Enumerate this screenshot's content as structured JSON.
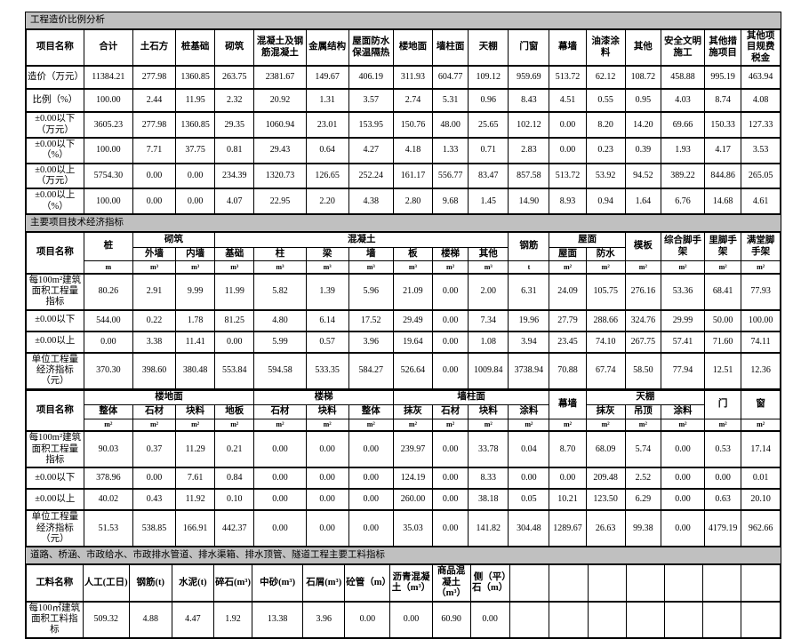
{
  "page": {
    "background": "#ffffff",
    "band_color": "#c0c0c0"
  },
  "section1": {
    "title": "工程造价比例分析",
    "header": [
      "项目名称",
      "合计",
      "土石方",
      "桩基础",
      "砌筑",
      "混凝土及钢筋混凝土",
      "金属结构",
      "屋面防水保温隔热",
      "楼地面",
      "墙柱面",
      "天棚",
      "门窗",
      "幕墙",
      "油漆涂料",
      "其他",
      "安全文明施工",
      "其他措施项目",
      "其他项目规费税金"
    ],
    "rows": [
      {
        "label": "造价（万元）",
        "values": [
          "11384.21",
          "277.98",
          "1360.85",
          "263.75",
          "2381.67",
          "149.67",
          "406.19",
          "311.93",
          "604.77",
          "109.12",
          "959.69",
          "513.72",
          "62.12",
          "108.72",
          "458.88",
          "995.19",
          "463.94"
        ]
      },
      {
        "label": "比例（%）",
        "values": [
          "100.00",
          "2.44",
          "11.95",
          "2.32",
          "20.92",
          "1.31",
          "3.57",
          "2.74",
          "5.31",
          "0.96",
          "8.43",
          "4.51",
          "0.55",
          "0.95",
          "4.03",
          "8.74",
          "4.08"
        ]
      },
      {
        "label": "±0.00以下（万元）",
        "values": [
          "3605.23",
          "277.98",
          "1360.85",
          "29.35",
          "1060.94",
          "23.01",
          "153.95",
          "150.76",
          "48.00",
          "25.65",
          "102.12",
          "0.00",
          "8.20",
          "14.20",
          "69.66",
          "150.33",
          "127.33"
        ]
      },
      {
        "label": "±0.00以下（%）",
        "values": [
          "100.00",
          "7.71",
          "37.75",
          "0.81",
          "29.43",
          "0.64",
          "4.27",
          "4.18",
          "1.33",
          "0.71",
          "2.83",
          "0.00",
          "0.23",
          "0.39",
          "1.93",
          "4.17",
          "3.53"
        ]
      },
      {
        "label": "±0.00以上（万元）",
        "values": [
          "5754.30",
          "0.00",
          "0.00",
          "234.39",
          "1320.73",
          "126.65",
          "252.24",
          "161.17",
          "556.77",
          "83.47",
          "857.58",
          "513.72",
          "53.92",
          "94.52",
          "389.22",
          "844.86",
          "265.05"
        ]
      },
      {
        "label": "±0.00以上（%）",
        "values": [
          "100.00",
          "0.00",
          "0.00",
          "4.07",
          "22.95",
          "2.20",
          "4.38",
          "2.80",
          "9.68",
          "1.45",
          "14.90",
          "8.93",
          "0.94",
          "1.64",
          "6.76",
          "14.68",
          "4.61"
        ]
      }
    ]
  },
  "section2": {
    "title": "主要项目技术经济指标",
    "t1": {
      "top": [
        "项目名称",
        "桩",
        "砌筑",
        "混凝土",
        "钢筋",
        "屋面",
        "模板",
        "综合脚手架",
        "里脚手架",
        "满堂脚手架"
      ],
      "sub": [
        "外墙",
        "内墙",
        "基础",
        "柱",
        "梁",
        "墙",
        "板",
        "楼梯",
        "其他",
        "屋面",
        "防水"
      ],
      "units": [
        "m",
        "m³",
        "m³",
        "m³",
        "m³",
        "m³",
        "m³",
        "m³",
        "m²",
        "m³",
        "t",
        "m²",
        "m²",
        "m²",
        "m²",
        "m²",
        "m²"
      ],
      "rows": [
        {
          "label": "每100m²建筑面积工程量指标",
          "values": [
            "80.26",
            "2.91",
            "9.99",
            "11.99",
            "5.82",
            "1.39",
            "5.96",
            "21.09",
            "0.00",
            "2.00",
            "6.31",
            "24.09",
            "105.75",
            "276.16",
            "53.36",
            "68.41",
            "77.93"
          ]
        },
        {
          "label": "±0.00以下",
          "values": [
            "544.00",
            "0.22",
            "1.78",
            "81.25",
            "4.80",
            "6.14",
            "17.52",
            "29.49",
            "0.00",
            "7.34",
            "19.96",
            "27.79",
            "288.66",
            "324.76",
            "29.99",
            "50.00",
            "100.00"
          ]
        },
        {
          "label": "±0.00以上",
          "values": [
            "0.00",
            "3.38",
            "11.41",
            "0.00",
            "5.99",
            "0.57",
            "3.96",
            "19.64",
            "0.00",
            "1.08",
            "3.94",
            "23.45",
            "74.10",
            "267.75",
            "57.41",
            "71.60",
            "74.11"
          ]
        },
        {
          "label": "单位工程量经济指标（元）",
          "values": [
            "370.30",
            "398.60",
            "380.48",
            "553.84",
            "594.58",
            "533.35",
            "584.27",
            "526.64",
            "0.00",
            "1009.84",
            "3738.94",
            "70.88",
            "67.74",
            "58.50",
            "77.94",
            "12.51",
            "12.36"
          ]
        }
      ]
    },
    "t2": {
      "top": [
        "项目名称",
        "楼地面",
        "楼梯",
        "墙柱面",
        "幕墙",
        "天棚",
        "门",
        "窗"
      ],
      "sub": [
        "整体",
        "石材",
        "块料",
        "地板",
        "石材",
        "块料",
        "整体",
        "抹灰",
        "石材",
        "块料",
        "涂料",
        "抹灰",
        "吊顶",
        "涂料"
      ],
      "units": [
        "m²",
        "m²",
        "m²",
        "m²",
        "m²",
        "m²",
        "m²",
        "m²",
        "m²",
        "m²",
        "m²",
        "m²",
        "m²",
        "m²",
        "m²",
        "m²",
        "m²"
      ],
      "rows": [
        {
          "label": "每100m²建筑面积工程量指标",
          "values": [
            "90.03",
            "0.37",
            "11.29",
            "0.21",
            "0.00",
            "0.00",
            "0.00",
            "239.97",
            "0.00",
            "33.78",
            "0.04",
            "8.70",
            "68.09",
            "5.74",
            "0.00",
            "0.53",
            "17.14"
          ]
        },
        {
          "label": "±0.00以下",
          "values": [
            "378.96",
            "0.00",
            "7.61",
            "0.84",
            "0.00",
            "0.00",
            "0.00",
            "124.19",
            "0.00",
            "8.33",
            "0.00",
            "0.00",
            "209.48",
            "2.52",
            "0.00",
            "0.00",
            "0.01"
          ]
        },
        {
          "label": "±0.00以上",
          "values": [
            "40.02",
            "0.43",
            "11.92",
            "0.10",
            "0.00",
            "0.00",
            "0.00",
            "260.00",
            "0.00",
            "38.18",
            "0.05",
            "10.21",
            "123.50",
            "6.29",
            "0.00",
            "0.63",
            "20.10"
          ]
        },
        {
          "label": "单位工程量经济指标（元）",
          "values": [
            "51.53",
            "538.85",
            "166.91",
            "442.37",
            "0.00",
            "0.00",
            "0.00",
            "35.03",
            "0.00",
            "141.82",
            "304.48",
            "1289.67",
            "26.63",
            "99.38",
            "0.00",
            "4179.19",
            "962.66"
          ]
        }
      ]
    }
  },
  "section3": {
    "title": "道路、桥涵、市政给水、市政排水管道、排水渠箱、排水顶管、隧道工程主要工料指标",
    "header": [
      "工料名称",
      "人工(工日)",
      "钢筋(t)",
      "水泥(t)",
      "碎石(m³)",
      "中砂(m³)",
      "石屑(m³)",
      "砼管（m）",
      "沥青混凝土（m³）",
      "商品混凝土（m³）",
      "侧（平）石（m）",
      "",
      "",
      "",
      "",
      "",
      "",
      ""
    ],
    "rows": [
      {
        "label": "每100㎡建筑面积工料指标",
        "values": [
          "509.32",
          "4.88",
          "4.47",
          "1.92",
          "13.38",
          "3.96",
          "0.00",
          "0.00",
          "60.90",
          "0.00",
          "",
          "",
          "",
          "",
          "",
          "",
          ""
        ]
      }
    ]
  }
}
